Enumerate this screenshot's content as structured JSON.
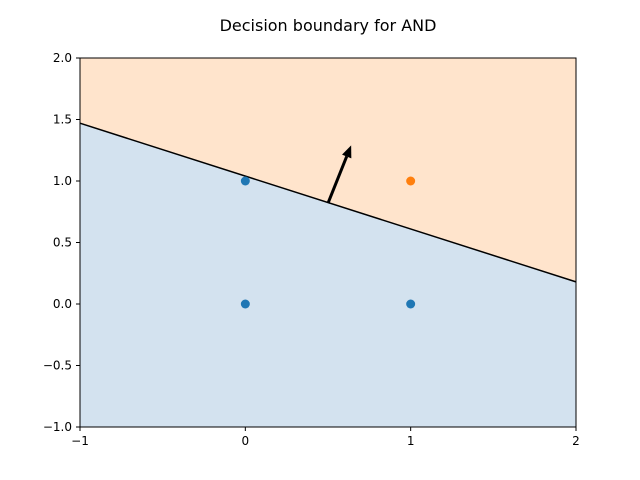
{
  "chart_data": {
    "type": "scatter",
    "title": "Decision boundary for AND",
    "xlabel": "",
    "ylabel": "",
    "xlim": [
      -1,
      2
    ],
    "ylim": [
      -1,
      2
    ],
    "grid": false,
    "x_ticks": [
      -1,
      0,
      1,
      2
    ],
    "x_tick_labels": [
      "−1",
      "0",
      "1",
      "2"
    ],
    "y_ticks": [
      -1.0,
      -0.5,
      0.0,
      0.5,
      1.0,
      1.5,
      2.0
    ],
    "y_tick_labels": [
      "−1.0",
      "−0.5",
      "0.0",
      "0.5",
      "1.0",
      "1.5",
      "2.0"
    ],
    "regions": [
      {
        "side": "above",
        "color": "#ffe4cc"
      },
      {
        "side": "below",
        "color": "#d3e2ef"
      }
    ],
    "boundary_line": {
      "points": [
        [
          -1,
          1.47
        ],
        [
          2,
          0.18
        ]
      ],
      "color": "#000000"
    },
    "weight_arrow": {
      "start": [
        0.5,
        0.82
      ],
      "end": [
        0.64,
        1.29
      ],
      "color": "#000000"
    },
    "series": [
      {
        "points": [
          [
            0,
            0
          ],
          [
            0,
            1
          ],
          [
            1,
            0
          ]
        ],
        "color": "#1f77b4"
      },
      {
        "points": [
          [
            1,
            1
          ]
        ],
        "color": "#ff7f0e"
      }
    ]
  }
}
